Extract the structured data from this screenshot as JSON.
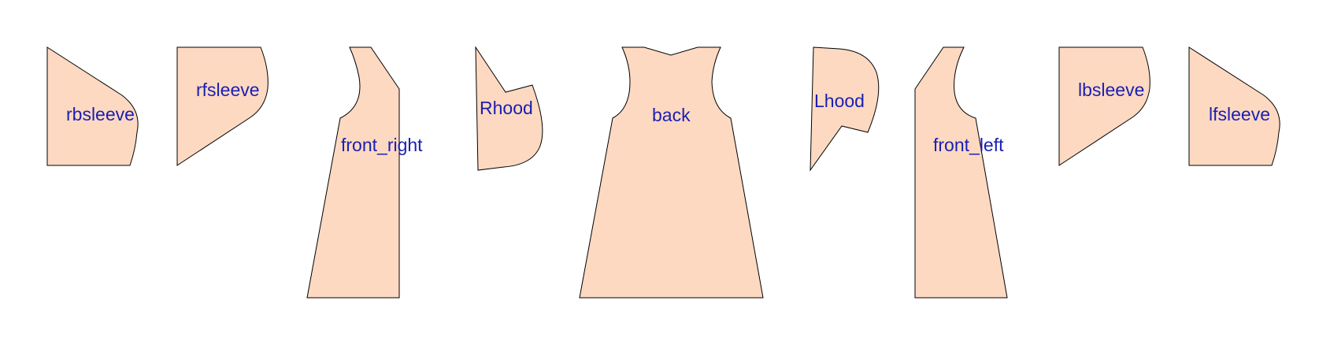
{
  "colors": {
    "fill": "#fdd9c2",
    "stroke": "#000000",
    "label": "#1b1fb0",
    "background": "#ffffff"
  },
  "pieces": [
    {
      "id": "rbsleeve",
      "label": "rbsleeve"
    },
    {
      "id": "rfsleeve",
      "label": "rfsleeve"
    },
    {
      "id": "front_right",
      "label": "front_right"
    },
    {
      "id": "rhood",
      "label": "Rhood"
    },
    {
      "id": "back",
      "label": "back"
    },
    {
      "id": "lhood",
      "label": "Lhood"
    },
    {
      "id": "front_left",
      "label": "front_left"
    },
    {
      "id": "lbsleeve",
      "label": "lbsleeve"
    },
    {
      "id": "lfsleeve",
      "label": "lfsleeve"
    }
  ]
}
